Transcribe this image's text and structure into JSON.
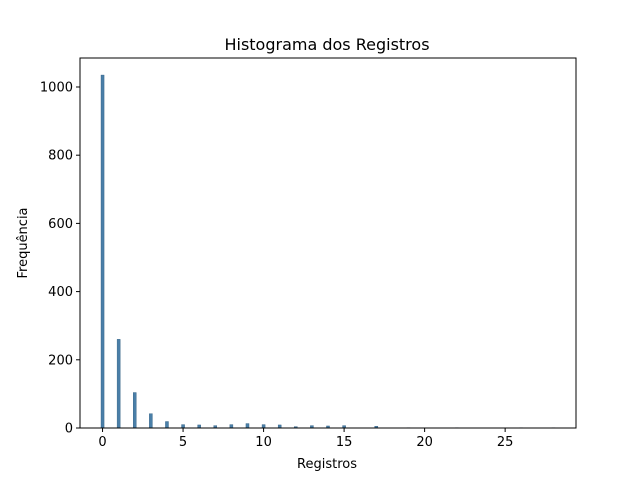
{
  "chart_data": {
    "type": "bar",
    "title": "Histograma dos Registros",
    "xlabel": "Registros",
    "ylabel": "Frequência",
    "xlim": [
      -1.4,
      29.4
    ],
    "ylim": [
      0,
      1085
    ],
    "xticks": [
      0,
      5,
      10,
      15,
      20,
      25
    ],
    "yticks": [
      0,
      200,
      400,
      600,
      800,
      1000
    ],
    "bar_width": 0.19,
    "bar_color": "#4a7fa8",
    "grid": false,
    "bars": [
      {
        "x": 0,
        "value": 1035
      },
      {
        "x": 1,
        "value": 260
      },
      {
        "x": 2,
        "value": 104
      },
      {
        "x": 3,
        "value": 42
      },
      {
        "x": 4,
        "value": 19
      },
      {
        "x": 5,
        "value": 10
      },
      {
        "x": 6,
        "value": 9
      },
      {
        "x": 7,
        "value": 7
      },
      {
        "x": 8,
        "value": 10
      },
      {
        "x": 9,
        "value": 13
      },
      {
        "x": 10,
        "value": 10
      },
      {
        "x": 11,
        "value": 9
      },
      {
        "x": 12,
        "value": 4
      },
      {
        "x": 13,
        "value": 7
      },
      {
        "x": 14,
        "value": 6
      },
      {
        "x": 15,
        "value": 7
      },
      {
        "x": 17,
        "value": 5
      },
      {
        "x": 19,
        "value": 1
      },
      {
        "x": 22,
        "value": 1
      },
      {
        "x": 26,
        "value": 1
      },
      {
        "x": 28,
        "value": 1
      }
    ]
  }
}
